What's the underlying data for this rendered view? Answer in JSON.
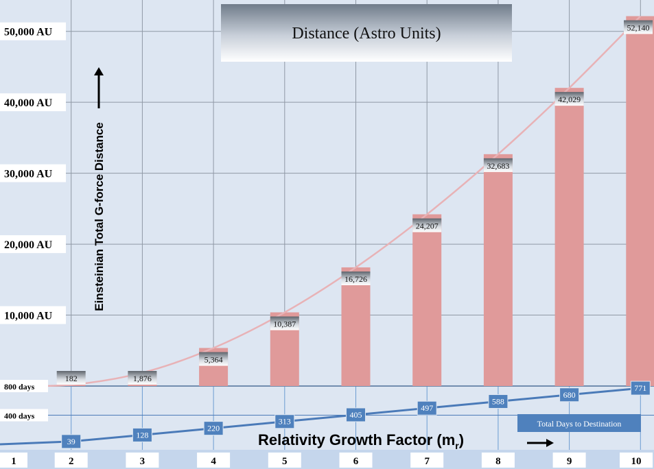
{
  "chart_data": {
    "type": "bar",
    "title": "Distance (Astro Units)",
    "ylabel": "Einsteinian Total G-force Distance",
    "xlabel": "Relativity Growth Factor (m",
    "xlabel_sub": "r",
    "x_ticks": [
      "1",
      "2",
      "3",
      "4",
      "5",
      "6",
      "7",
      "8",
      "9",
      "10"
    ],
    "y_ticks": [
      "10,000 AU",
      "20,000 AU",
      "30,000 AU",
      "40,000 AU",
      "50,000 AU"
    ],
    "y_tick_values": [
      10000,
      20000,
      30000,
      40000,
      50000
    ],
    "ylim": [
      0,
      52000
    ],
    "distance": {
      "x": [
        2,
        3,
        4,
        5,
        6,
        7,
        8,
        9,
        10
      ],
      "values": [
        182,
        1876,
        5364,
        10387,
        16726,
        24207,
        32683,
        42029,
        52140
      ],
      "labels": [
        "182",
        "1,876",
        "5,364",
        "10,387",
        "16,726",
        "24,207",
        "32,683",
        "42,029",
        "52,140"
      ],
      "color": "#e09a9a"
    },
    "days": {
      "name": "Total Days to Destination",
      "y_ticks": [
        "400 days",
        "800 days"
      ],
      "y_tick_values": [
        400,
        800
      ],
      "ylim": [
        0,
        800
      ],
      "x": [
        2,
        3,
        4,
        5,
        6,
        7,
        8,
        9,
        10
      ],
      "values": [
        39,
        128,
        220,
        313,
        405,
        497,
        588,
        680,
        771
      ],
      "labels": [
        "39",
        "128",
        "220",
        "313",
        "405",
        "497",
        "588",
        "680",
        "771"
      ],
      "color": "#4a7ab8"
    }
  }
}
